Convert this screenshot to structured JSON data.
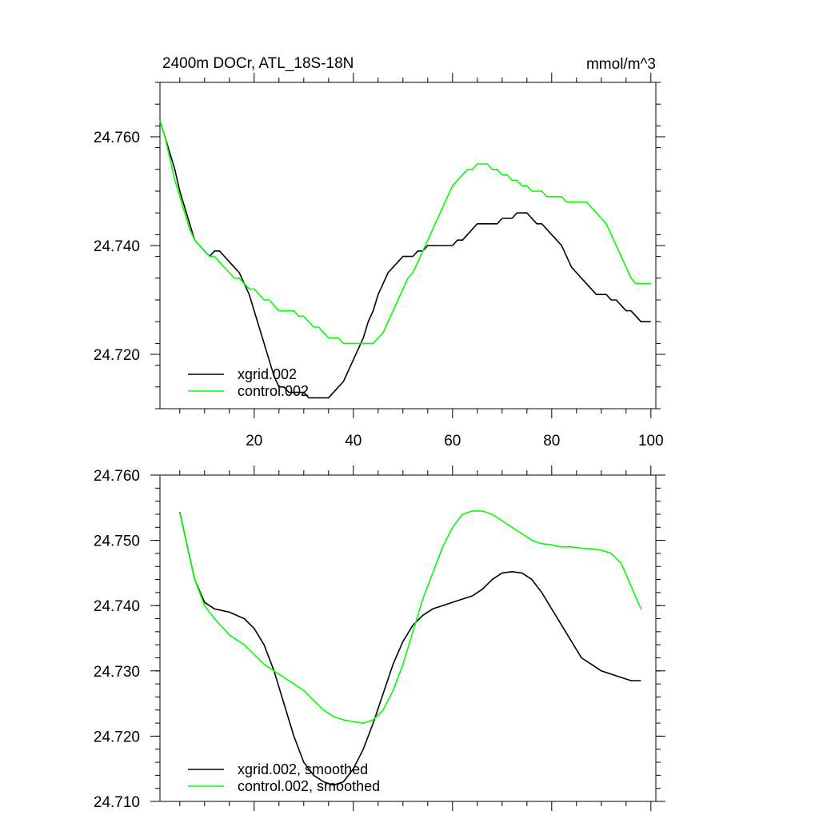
{
  "chart_data": [
    {
      "type": "line",
      "title": "2400m DOCr, ATL_18S-18N",
      "units": "mmol/m^3",
      "xlim": [
        1,
        101
      ],
      "ylim": [
        24.71,
        24.77
      ],
      "xticks": [
        20,
        40,
        60,
        80,
        100
      ],
      "yticks": [
        24.72,
        24.74,
        24.76
      ],
      "ytick_labels": [
        "24.720",
        "24.740",
        "24.760"
      ],
      "xtick_labels": [
        "20",
        "40",
        "60",
        "80",
        "100"
      ],
      "series": [
        {
          "name": "xgrid.002",
          "color": "#000000",
          "x": [
            1,
            2,
            3,
            4,
            5,
            6,
            7,
            8,
            9,
            10,
            11,
            12,
            13,
            14,
            15,
            16,
            17,
            18,
            19,
            20,
            21,
            22,
            23,
            24,
            25,
            26,
            27,
            28,
            29,
            30,
            31,
            32,
            33,
            34,
            35,
            36,
            37,
            38,
            39,
            40,
            41,
            42,
            43,
            44,
            45,
            46,
            47,
            48,
            49,
            50,
            51,
            52,
            53,
            54,
            55,
            56,
            57,
            58,
            59,
            60,
            61,
            62,
            63,
            64,
            65,
            66,
            67,
            68,
            69,
            70,
            71,
            72,
            73,
            74,
            75,
            76,
            77,
            78,
            79,
            80,
            81,
            82,
            83,
            84,
            85,
            86,
            87,
            88,
            89,
            90,
            91,
            92,
            93,
            94,
            95,
            96,
            97,
            98,
            99,
            100
          ],
          "y": [
            24.763,
            24.76,
            24.757,
            24.754,
            24.75,
            24.747,
            24.744,
            24.741,
            24.74,
            24.739,
            24.738,
            24.739,
            24.739,
            24.738,
            24.737,
            24.736,
            24.735,
            24.733,
            24.731,
            24.728,
            24.725,
            24.722,
            24.719,
            24.716,
            24.714,
            24.714,
            24.713,
            24.713,
            24.713,
            24.713,
            24.712,
            24.712,
            24.712,
            24.712,
            24.712,
            24.713,
            24.714,
            24.715,
            24.717,
            24.719,
            24.721,
            24.723,
            24.726,
            24.728,
            24.731,
            24.733,
            24.735,
            24.736,
            24.737,
            24.738,
            24.738,
            24.738,
            24.739,
            24.739,
            24.74,
            24.74,
            24.74,
            24.74,
            24.74,
            24.74,
            24.741,
            24.741,
            24.742,
            24.743,
            24.744,
            24.744,
            24.744,
            24.744,
            24.744,
            24.745,
            24.745,
            24.745,
            24.746,
            24.746,
            24.746,
            24.745,
            24.744,
            24.744,
            24.743,
            24.742,
            24.741,
            24.74,
            24.738,
            24.736,
            24.735,
            24.734,
            24.733,
            24.732,
            24.731,
            24.731,
            24.731,
            24.73,
            24.73,
            24.729,
            24.728,
            24.728,
            24.727,
            24.726,
            24.726,
            24.726
          ]
        },
        {
          "name": "control.002",
          "color": "#00ff00",
          "x": [
            1,
            2,
            3,
            4,
            5,
            6,
            7,
            8,
            9,
            10,
            11,
            12,
            13,
            14,
            15,
            16,
            17,
            18,
            19,
            20,
            21,
            22,
            23,
            24,
            25,
            26,
            27,
            28,
            29,
            30,
            31,
            32,
            33,
            34,
            35,
            36,
            37,
            38,
            39,
            40,
            41,
            42,
            43,
            44,
            45,
            46,
            47,
            48,
            49,
            50,
            51,
            52,
            53,
            54,
            55,
            56,
            57,
            58,
            59,
            60,
            61,
            62,
            63,
            64,
            65,
            66,
            67,
            68,
            69,
            70,
            71,
            72,
            73,
            74,
            75,
            76,
            77,
            78,
            79,
            80,
            81,
            82,
            83,
            84,
            85,
            86,
            87,
            88,
            89,
            90,
            91,
            92,
            93,
            94,
            95,
            96,
            97,
            98,
            99,
            100
          ],
          "y": [
            24.763,
            24.76,
            24.756,
            24.752,
            24.749,
            24.746,
            24.743,
            24.741,
            24.74,
            24.739,
            24.738,
            24.738,
            24.737,
            24.736,
            24.735,
            24.734,
            24.734,
            24.733,
            24.732,
            24.732,
            24.731,
            24.73,
            24.73,
            24.729,
            24.728,
            24.728,
            24.728,
            24.728,
            24.727,
            24.727,
            24.726,
            24.725,
            24.725,
            24.724,
            24.723,
            24.723,
            24.723,
            24.722,
            24.722,
            24.722,
            24.722,
            24.722,
            24.722,
            24.722,
            24.723,
            24.724,
            24.726,
            24.728,
            24.73,
            24.732,
            24.734,
            24.735,
            24.737,
            24.739,
            24.741,
            24.743,
            24.745,
            24.747,
            24.749,
            24.751,
            24.752,
            24.753,
            24.754,
            24.754,
            24.755,
            24.755,
            24.755,
            24.754,
            24.754,
            24.753,
            24.753,
            24.752,
            24.752,
            24.751,
            24.751,
            24.75,
            24.75,
            24.75,
            24.749,
            24.749,
            24.749,
            24.749,
            24.748,
            24.748,
            24.748,
            24.748,
            24.748,
            24.747,
            24.746,
            24.745,
            24.744,
            24.742,
            24.74,
            24.738,
            24.736,
            24.734,
            24.733,
            24.733,
            24.733,
            24.733
          ]
        }
      ],
      "legend": {
        "location": "lower-left",
        "entries": [
          "xgrid.002",
          "control.002"
        ]
      }
    },
    {
      "type": "line",
      "xlim": [
        1,
        101
      ],
      "ylim": [
        24.71,
        24.76
      ],
      "xticks": [
        20,
        40,
        60,
        80,
        100
      ],
      "yticks": [
        24.71,
        24.72,
        24.73,
        24.74,
        24.75,
        24.76
      ],
      "ytick_labels": [
        "24.710",
        "24.720",
        "24.730",
        "24.740",
        "24.750",
        "24.760"
      ],
      "series": [
        {
          "name": "xgrid.002, smoothed",
          "color": "#000000",
          "x": [
            5,
            8,
            10,
            12,
            15,
            18,
            20,
            22,
            24,
            26,
            28,
            30,
            32,
            34,
            36,
            38,
            40,
            42,
            44,
            46,
            48,
            50,
            52,
            54,
            56,
            58,
            60,
            62,
            64,
            66,
            68,
            70,
            72,
            74,
            76,
            78,
            80,
            82,
            84,
            86,
            88,
            90,
            92,
            94,
            96,
            98
          ],
          "y": [
            24.7543,
            24.744,
            24.7405,
            24.7395,
            24.739,
            24.738,
            24.7365,
            24.734,
            24.73,
            24.725,
            24.72,
            24.716,
            24.714,
            24.713,
            24.7125,
            24.713,
            24.715,
            24.718,
            24.722,
            24.7265,
            24.731,
            24.7345,
            24.737,
            24.7385,
            24.7395,
            24.74,
            24.7405,
            24.741,
            24.7415,
            24.7425,
            24.744,
            24.745,
            24.7452,
            24.745,
            24.744,
            24.742,
            24.7395,
            24.737,
            24.7345,
            24.732,
            24.731,
            24.73,
            24.7295,
            24.729,
            24.7285,
            24.7285
          ]
        },
        {
          "name": "control.002, smoothed",
          "color": "#00ff00",
          "x": [
            5,
            8,
            10,
            12,
            15,
            18,
            20,
            22,
            24,
            26,
            28,
            30,
            32,
            34,
            36,
            38,
            40,
            42,
            44,
            46,
            48,
            50,
            52,
            54,
            56,
            58,
            60,
            62,
            64,
            66,
            68,
            70,
            72,
            74,
            76,
            78,
            80,
            82,
            84,
            86,
            88,
            90,
            92,
            94,
            96,
            98
          ],
          "y": [
            24.7542,
            24.744,
            24.74,
            24.738,
            24.7355,
            24.734,
            24.7325,
            24.731,
            24.73,
            24.729,
            24.728,
            24.727,
            24.7255,
            24.724,
            24.723,
            24.7225,
            24.7222,
            24.722,
            24.7225,
            24.724,
            24.727,
            24.731,
            24.736,
            24.741,
            24.745,
            24.749,
            24.752,
            24.754,
            24.7545,
            24.7545,
            24.754,
            24.753,
            24.752,
            24.751,
            24.75,
            24.7495,
            24.7493,
            24.749,
            24.749,
            24.7488,
            24.7487,
            24.7485,
            24.748,
            24.7465,
            24.743,
            24.7395
          ]
        }
      ],
      "legend": {
        "location": "lower-left",
        "entries": [
          "xgrid.002, smoothed",
          "control.002, smoothed"
        ]
      }
    }
  ]
}
